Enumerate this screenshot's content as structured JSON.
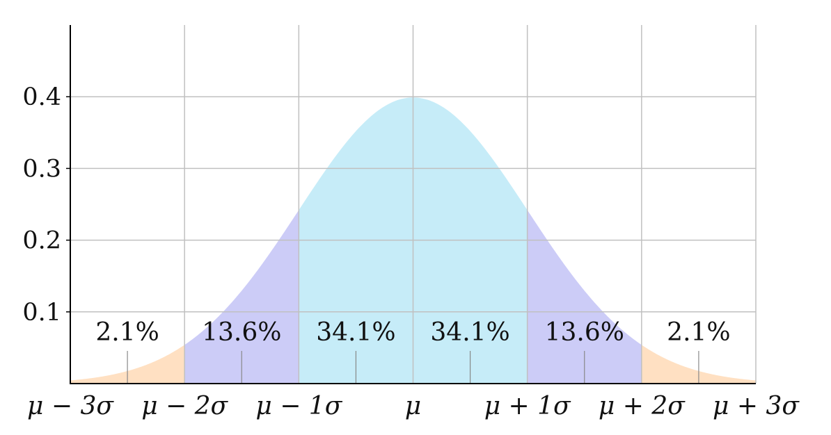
{
  "chart_data": {
    "type": "area",
    "title": "",
    "xlabel": "",
    "ylabel": "",
    "xlim": [
      -3,
      3
    ],
    "ylim": [
      0,
      0.5
    ],
    "grid": true,
    "curve": "normal-pdf",
    "x_ticks": [
      {
        "x": -3,
        "label": "μ − 3σ"
      },
      {
        "x": -2,
        "label": "μ − 2σ"
      },
      {
        "x": -1,
        "label": "μ − 1σ"
      },
      {
        "x": 0,
        "label": "μ"
      },
      {
        "x": 1,
        "label": "μ + 1σ"
      },
      {
        "x": 2,
        "label": "μ + 2σ"
      },
      {
        "x": 3,
        "label": "μ + 3σ"
      }
    ],
    "y_ticks": [
      {
        "y": 0.1,
        "label": "0.1"
      },
      {
        "y": 0.2,
        "label": "0.2"
      },
      {
        "y": 0.3,
        "label": "0.3"
      },
      {
        "y": 0.4,
        "label": "0.4"
      }
    ],
    "regions": [
      {
        "from": -4,
        "to": -2,
        "color": "#ffe0c2"
      },
      {
        "from": -2,
        "to": -1,
        "color": "#ccccf7"
      },
      {
        "from": -1,
        "to": 1,
        "color": "#c6ecf8"
      },
      {
        "from": 1,
        "to": 2,
        "color": "#ccccf7"
      },
      {
        "from": 2,
        "to": 4,
        "color": "#ffe0c2"
      }
    ],
    "annotations": [
      {
        "x": -2.5,
        "label": "2.1%"
      },
      {
        "x": -1.5,
        "label": "13.6%"
      },
      {
        "x": -0.5,
        "label": "34.1%"
      },
      {
        "x": 0.5,
        "label": "34.1%"
      },
      {
        "x": 1.5,
        "label": "13.6%"
      },
      {
        "x": 2.5,
        "label": "2.1%"
      }
    ],
    "colors": {
      "grid": "#c0c0c0",
      "axis": "#000000",
      "marker": "#888888"
    }
  }
}
